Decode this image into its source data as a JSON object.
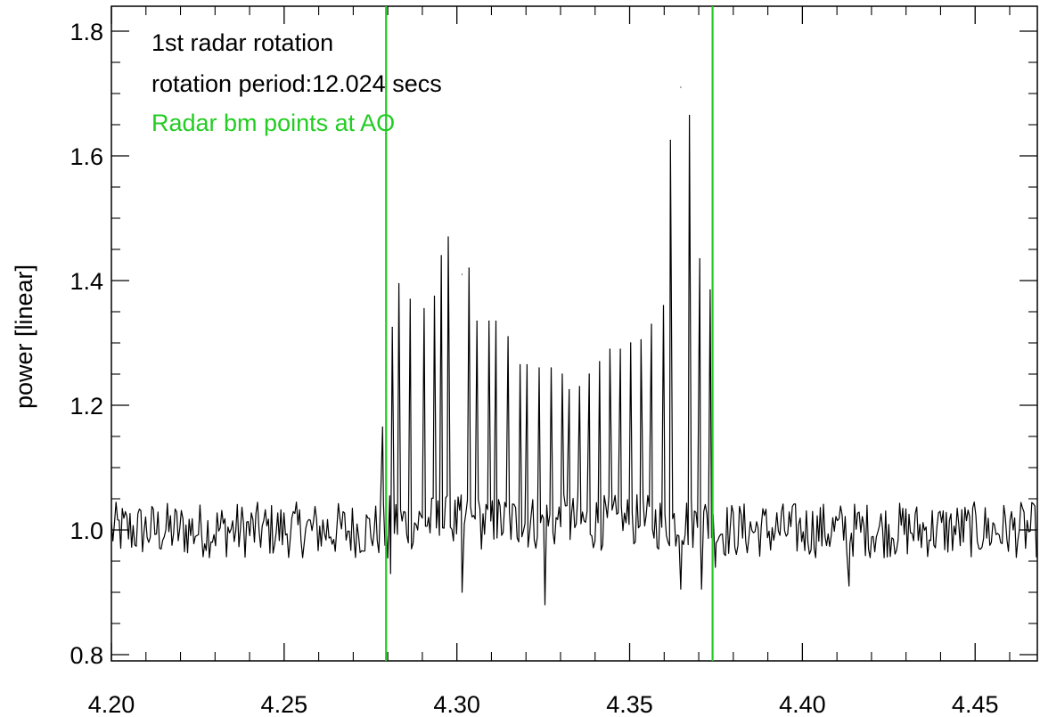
{
  "chart_data": {
    "type": "line",
    "title": "",
    "xlabel": "",
    "ylabel": "power [linear]",
    "xlim": [
      4.2,
      4.468
    ],
    "ylim": [
      0.79,
      1.84
    ],
    "x_ticks": [
      4.2,
      4.25,
      4.3,
      4.35,
      4.4,
      4.45
    ],
    "x_tick_labels": [
      "4.20",
      "4.25",
      "4.30",
      "4.35",
      "4.40",
      "4.45"
    ],
    "y_ticks": [
      0.8,
      1.0,
      1.2,
      1.4,
      1.6,
      1.8
    ],
    "y_tick_labels": [
      "0.8",
      "1.0",
      "1.2",
      "1.4",
      "1.6",
      "1.8"
    ],
    "grid": false,
    "annotations": [
      {
        "text": "1st radar rotation",
        "color": "#000000"
      },
      {
        "text": "rotation period:12.024 secs",
        "color": "#000000"
      },
      {
        "text": "Radar bm points at AO",
        "color": "#22cc22"
      }
    ],
    "vertical_lines": [
      {
        "x": 4.2795,
        "color": "#22cc22"
      },
      {
        "x": 4.374,
        "color": "#22cc22"
      }
    ],
    "baseline": {
      "mean": 1.0,
      "spread": 0.045
    },
    "series": [
      {
        "color": "#000000",
        "peaks": [
          {
            "x": 4.2785,
            "y": 1.165
          },
          {
            "x": 4.2813,
            "y": 1.325
          },
          {
            "x": 4.2832,
            "y": 1.395
          },
          {
            "x": 4.2865,
            "y": 1.37
          },
          {
            "x": 4.2905,
            "y": 1.355
          },
          {
            "x": 4.2935,
            "y": 1.375
          },
          {
            "x": 4.2955,
            "y": 1.44
          },
          {
            "x": 4.2975,
            "y": 1.47
          },
          {
            "x": 4.3015,
            "y": 1.41
          },
          {
            "x": 4.3035,
            "y": 1.42
          },
          {
            "x": 4.3058,
            "y": 1.335
          },
          {
            "x": 4.3093,
            "y": 1.335
          },
          {
            "x": 4.3113,
            "y": 1.335
          },
          {
            "x": 4.3148,
            "y": 1.31
          },
          {
            "x": 4.3183,
            "y": 1.265
          },
          {
            "x": 4.3203,
            "y": 1.265
          },
          {
            "x": 4.3238,
            "y": 1.26
          },
          {
            "x": 4.3273,
            "y": 1.26
          },
          {
            "x": 4.3305,
            "y": 1.25
          },
          {
            "x": 4.3325,
            "y": 1.225
          },
          {
            "x": 4.3355,
            "y": 1.23
          },
          {
            "x": 4.3383,
            "y": 1.25
          },
          {
            "x": 4.3413,
            "y": 1.27
          },
          {
            "x": 4.3443,
            "y": 1.29
          },
          {
            "x": 4.3473,
            "y": 1.29
          },
          {
            "x": 4.3503,
            "y": 1.3
          },
          {
            "x": 4.3533,
            "y": 1.305
          },
          {
            "x": 4.3563,
            "y": 1.33
          },
          {
            "x": 4.3598,
            "y": 1.36
          },
          {
            "x": 4.3618,
            "y": 1.625
          },
          {
            "x": 4.3648,
            "y": 1.71
          },
          {
            "x": 4.3673,
            "y": 1.665
          },
          {
            "x": 4.3703,
            "y": 1.435
          },
          {
            "x": 4.3733,
            "y": 1.385
          }
        ],
        "dips": [
          {
            "x": 4.28,
            "y": 0.955
          },
          {
            "x": 4.2808,
            "y": 0.93
          },
          {
            "x": 4.3015,
            "y": 0.9
          },
          {
            "x": 4.3255,
            "y": 0.88
          },
          {
            "x": 4.3648,
            "y": 0.905
          },
          {
            "x": 4.3708,
            "y": 0.905
          },
          {
            "x": 4.3748,
            "y": 0.94
          },
          {
            "x": 4.4135,
            "y": 0.91
          }
        ]
      }
    ]
  }
}
